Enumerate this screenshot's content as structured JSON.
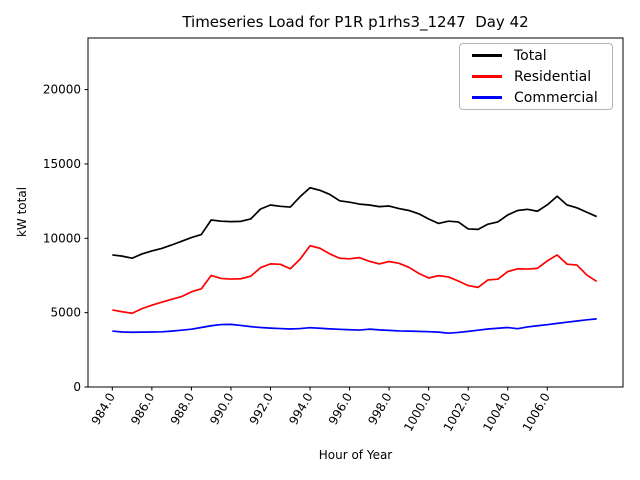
{
  "chart_data": {
    "type": "line",
    "title": "Timeseries Load for P1R p1rhs3_1247  Day 42",
    "xlabel": "Hour of Year",
    "ylabel": "kW total",
    "xlim": [
      982.77,
      1009.83
    ],
    "ylim": [
      0,
      23470
    ],
    "grid": false,
    "background": "#ffffff",
    "legend": {
      "position": "upper right"
    },
    "xticks": {
      "values": [
        984,
        986,
        988,
        990,
        992,
        994,
        996,
        998,
        1000,
        1002,
        1004,
        1006
      ],
      "labels": [
        "984.0",
        "986.0",
        "988.0",
        "990.0",
        "992.0",
        "994.0",
        "996.0",
        "998.0",
        "1000.0",
        "1002.0",
        "1004.0",
        "1006.0"
      ],
      "rotation_deg": 60
    },
    "yticks": {
      "values": [
        0,
        5000,
        10000,
        15000,
        20000
      ],
      "labels": [
        "0",
        "5000",
        "10000",
        "15000",
        "20000"
      ]
    },
    "x": [
      984,
      984.5,
      985,
      985.5,
      986,
      986.5,
      987,
      987.5,
      988,
      988.5,
      989,
      989.5,
      990,
      990.5,
      991,
      991.5,
      992,
      992.5,
      993,
      993.5,
      994,
      994.5,
      995,
      995.5,
      996,
      996.5,
      997,
      997.5,
      998,
      998.5,
      999,
      999.5,
      1000,
      1000.5,
      1001,
      1001.5,
      1002,
      1002.5,
      1003,
      1003.5,
      1004,
      1004.5,
      1005,
      1005.5,
      1006,
      1006.5,
      1007,
      1007.5,
      1008,
      1008.5
    ],
    "series": [
      {
        "name": "Total",
        "color": "#000000",
        "values": [
          8880,
          8800,
          8660,
          8950,
          9150,
          9320,
          9550,
          9800,
          10050,
          10250,
          11230,
          11150,
          11120,
          11140,
          11300,
          11970,
          12240,
          12150,
          12100,
          12800,
          13400,
          13230,
          12950,
          12520,
          12430,
          12300,
          12240,
          12130,
          12170,
          12000,
          11870,
          11650,
          11300,
          11000,
          11150,
          11100,
          10630,
          10600,
          10950,
          11100,
          11570,
          11870,
          11950,
          11820,
          12250,
          12830,
          12240,
          12050,
          11750,
          11460
        ]
      },
      {
        "name": "Residential",
        "color": "#ff0000",
        "values": [
          5180,
          5060,
          4960,
          5270,
          5500,
          5700,
          5900,
          6080,
          6400,
          6600,
          7500,
          7300,
          7260,
          7280,
          7450,
          8030,
          8280,
          8250,
          7950,
          8600,
          9500,
          9330,
          8950,
          8660,
          8620,
          8700,
          8450,
          8280,
          8440,
          8320,
          8050,
          7640,
          7330,
          7490,
          7400,
          7130,
          6820,
          6700,
          7200,
          7250,
          7760,
          7950,
          7930,
          7980,
          8480,
          8880,
          8260,
          8200,
          7530,
          7100
        ]
      },
      {
        "name": "Commercial",
        "color": "#0000ff",
        "values": [
          3760,
          3700,
          3680,
          3690,
          3700,
          3710,
          3760,
          3820,
          3890,
          4000,
          4120,
          4200,
          4210,
          4140,
          4060,
          4000,
          3960,
          3930,
          3900,
          3930,
          3990,
          3950,
          3910,
          3880,
          3850,
          3830,
          3890,
          3840,
          3810,
          3770,
          3760,
          3740,
          3720,
          3690,
          3620,
          3670,
          3740,
          3820,
          3900,
          3950,
          4000,
          3920,
          4040,
          4120,
          4190,
          4280,
          4360,
          4440,
          4520,
          4580
        ]
      }
    ]
  }
}
